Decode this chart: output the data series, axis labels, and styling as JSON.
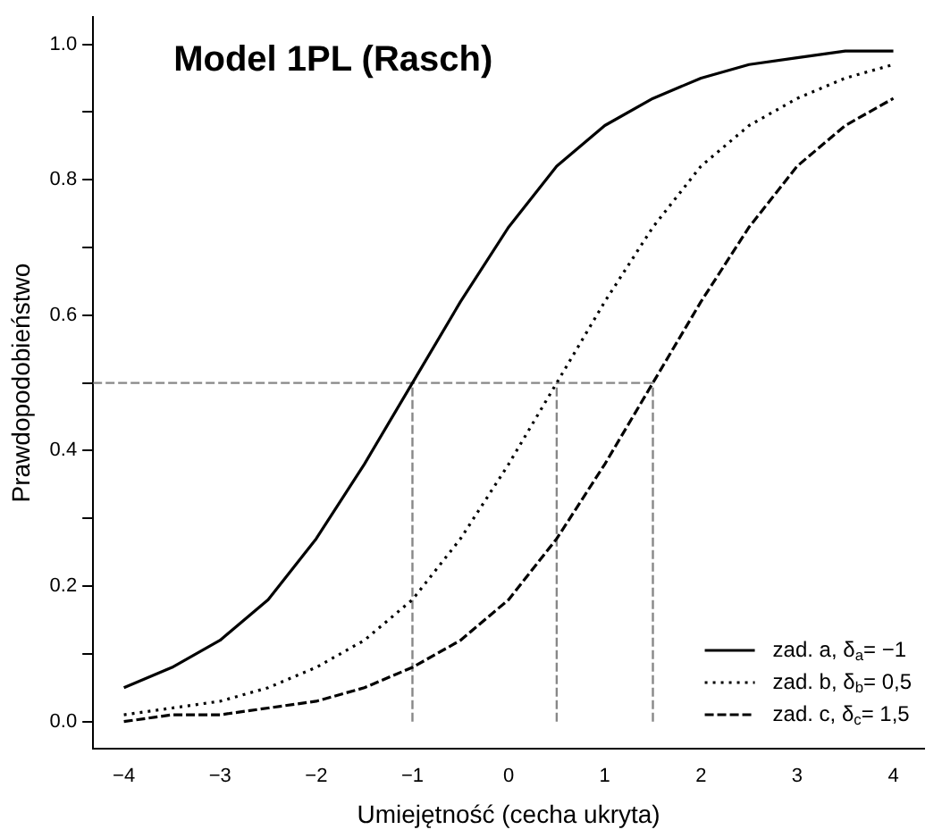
{
  "chart_data": {
    "type": "line",
    "title": "Model 1PL (Rasch)",
    "xlabel": "Umiejętność (cecha ukryta)",
    "ylabel": "Prawdopodobieństwo",
    "x": [
      -4,
      -3.5,
      -3,
      -2.5,
      -2,
      -1.5,
      -1,
      -0.5,
      0,
      0.5,
      1,
      1.5,
      2,
      2.5,
      3,
      3.5,
      4
    ],
    "series": [
      {
        "name": "zad. a, δ$_{a}$= −1",
        "color": "#000000",
        "line_style": "solid",
        "values": [
          0.05,
          0.08,
          0.12,
          0.18,
          0.27,
          0.38,
          0.5,
          0.62,
          0.73,
          0.82,
          0.88,
          0.92,
          0.95,
          0.97,
          0.98,
          0.99,
          0.99
        ]
      },
      {
        "name": "zad. b, δ$_{b}$= 0,5",
        "color": "#000000",
        "line_style": "dotted",
        "values": [
          0.01,
          0.02,
          0.03,
          0.05,
          0.08,
          0.12,
          0.18,
          0.27,
          0.38,
          0.5,
          0.62,
          0.73,
          0.82,
          0.88,
          0.92,
          0.95,
          0.97
        ]
      },
      {
        "name": "zad. c, δ$_{c}$= 1,5",
        "color": "#000000",
        "line_style": "dashed",
        "values": [
          0.0,
          0.01,
          0.01,
          0.02,
          0.03,
          0.05,
          0.08,
          0.12,
          0.18,
          0.27,
          0.38,
          0.5,
          0.62,
          0.73,
          0.82,
          0.88,
          0.92
        ]
      },
      {
        "x": [
          -4.32,
          1.5
        ],
        "color": "#888888",
        "line_style": "dashed",
        "values": [
          0.5,
          0.5
        ]
      },
      {
        "x": [
          -1,
          -1
        ],
        "color": "#888888",
        "line_style": "dashed",
        "values": [
          0,
          0.5
        ]
      },
      {
        "x": [
          0.5,
          0.5
        ],
        "color": "#888888",
        "line_style": "dashed",
        "values": [
          0,
          0.5
        ]
      },
      {
        "x": [
          1.5,
          1.5
        ],
        "color": "#888888",
        "line_style": "dashed",
        "values": [
          0,
          0.5
        ]
      }
    ],
    "xlim": [
      -4.32,
      4.32
    ],
    "ylim": [
      -0.04,
      1.04
    ],
    "xticks": [
      {
        "value": -4,
        "label": "−4"
      },
      {
        "value": -3,
        "label": "−3"
      },
      {
        "value": -2,
        "label": "−2"
      },
      {
        "value": -1,
        "label": "−1"
      },
      0,
      1,
      2,
      3,
      4
    ],
    "yticks": [
      {
        "value": 0,
        "label": "0.0"
      },
      {
        "value": 0.1,
        "label": null
      },
      0.2,
      {
        "value": 0.3,
        "label": null
      },
      0.4,
      {
        "value": 0.5,
        "label": null
      },
      0.6,
      {
        "value": 0.7,
        "label": null
      },
      0.8,
      {
        "value": 0.9,
        "label": null
      },
      {
        "value": 1,
        "label": "1.0"
      }
    ],
    "legend": "bottom right",
    "grid": false,
    "marker": "none"
  }
}
